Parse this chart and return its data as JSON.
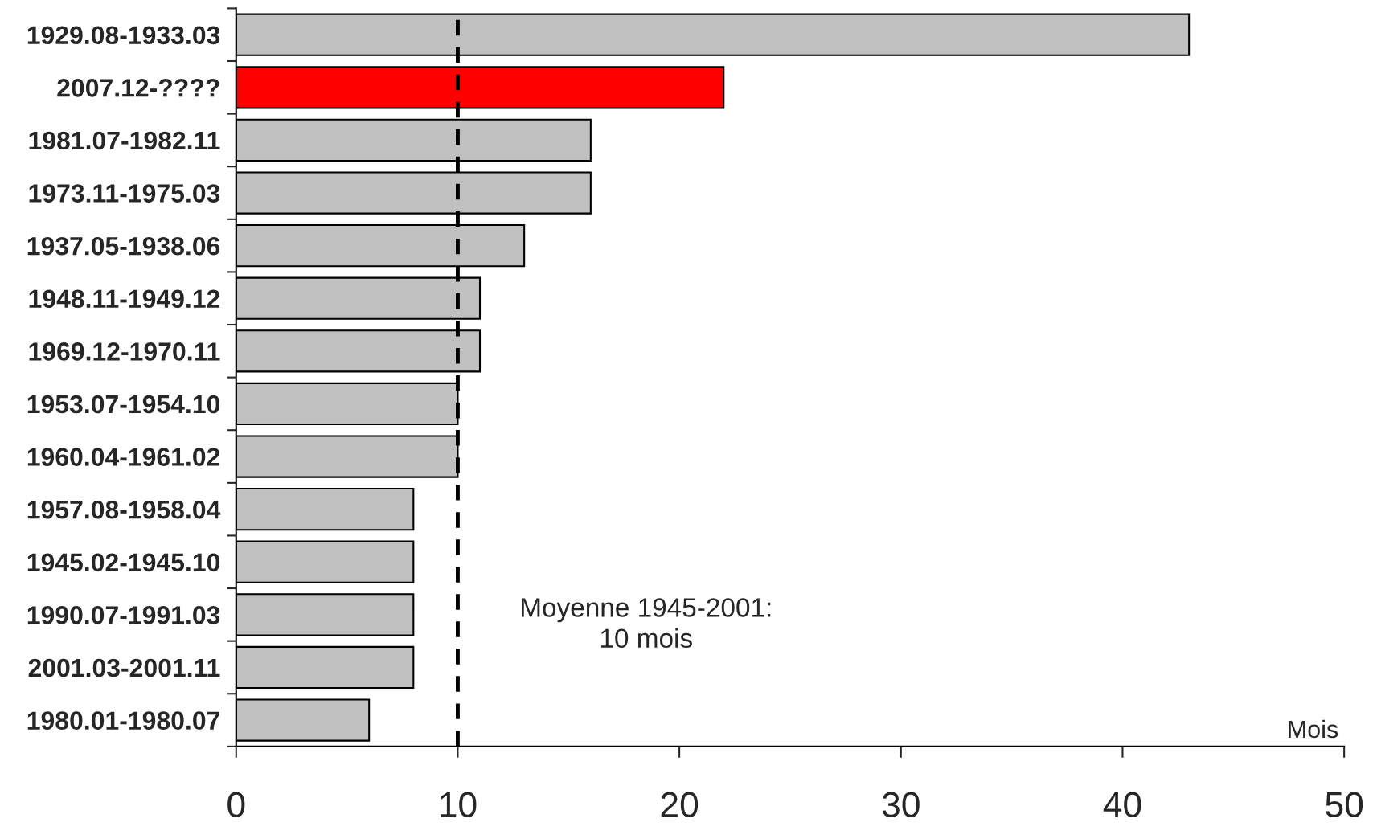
{
  "chart_data": {
    "type": "bar",
    "orientation": "horizontal",
    "categories": [
      "1929.08-1933.03",
      "2007.12-????",
      "1981.07-1982.11",
      "1973.11-1975.03",
      "1937.05-1938.06",
      "1948.11-1949.12",
      "1969.12-1970.11",
      "1953.07-1954.10",
      "1960.04-1961.02",
      "1957.08-1958.04",
      "1945.02-1945.10",
      "1990.07-1991.03",
      "2001.03-2001.11",
      "1980.01-1980.07"
    ],
    "values": [
      43,
      22,
      16,
      16,
      13,
      11,
      11,
      10,
      10,
      8,
      8,
      8,
      8,
      6
    ],
    "colors": [
      "#c0c0c0",
      "#ff0000",
      "#c0c0c0",
      "#c0c0c0",
      "#c0c0c0",
      "#c0c0c0",
      "#c0c0c0",
      "#c0c0c0",
      "#c0c0c0",
      "#c0c0c0",
      "#c0c0c0",
      "#c0c0c0",
      "#c0c0c0",
      "#c0c0c0"
    ],
    "xlim": [
      0,
      50
    ],
    "xticks": [
      0,
      10,
      20,
      30,
      40,
      50
    ],
    "xlabel": "Mois",
    "ref_lines": [
      {
        "axis": "x",
        "value": 10,
        "label": "Moyenne 1945-2001:\n10 mois",
        "color": "#000000",
        "line_style": "dashed"
      }
    ],
    "grid": false,
    "legend": false
  }
}
